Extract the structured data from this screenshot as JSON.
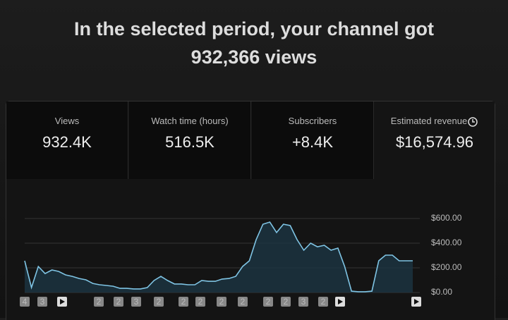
{
  "header": {
    "line1": "In the selected period, your channel got",
    "line2": "932,366 views"
  },
  "metrics": [
    {
      "label": "Views",
      "value": "932.4K"
    },
    {
      "label": "Watch time (hours)",
      "value": "516.5K"
    },
    {
      "label": "Subscribers",
      "value": "+8.4K"
    },
    {
      "label": "Estimated revenue",
      "value": "$16,574.96"
    }
  ],
  "chart_data": {
    "type": "line",
    "color": "#7fc4e4",
    "area_color": "#1c3442",
    "values": [
      257,
      40,
      211,
      154,
      183,
      171,
      143,
      131,
      114,
      103,
      74,
      63,
      57,
      51,
      34,
      34,
      29,
      29,
      40,
      97,
      131,
      97,
      69,
      69,
      63,
      63,
      97,
      91,
      91,
      109,
      114,
      131,
      211,
      257,
      429,
      554,
      571,
      486,
      554,
      543,
      429,
      343,
      400,
      371,
      383,
      343,
      360,
      211,
      11,
      6,
      6,
      11,
      257,
      303,
      303,
      257,
      257,
      257
    ],
    "ylim": [
      0,
      600
    ],
    "yticks": [
      {
        "value": 0,
        "label": "$0.00"
      },
      {
        "value": 200,
        "label": "$200.00"
      },
      {
        "value": 400,
        "label": "$400.00"
      },
      {
        "value": 600,
        "label": "$600.00"
      }
    ],
    "grid": true,
    "markers": [
      "4",
      "3",
      null,
      "2",
      "2",
      "3",
      "2",
      "2",
      "2",
      "2",
      "2",
      "2",
      "2",
      "3",
      "2",
      null,
      null
    ]
  }
}
